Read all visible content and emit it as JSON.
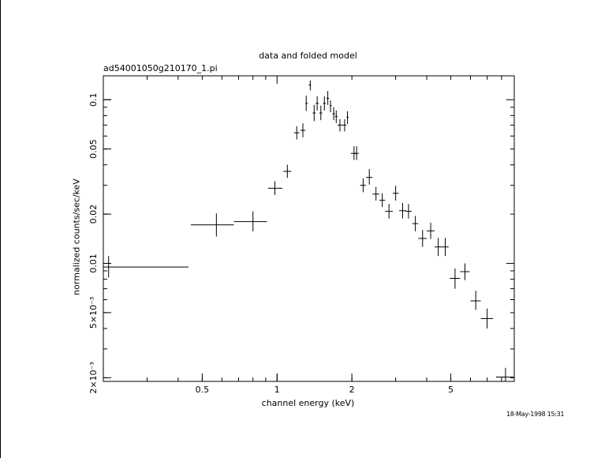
{
  "chart_data": {
    "type": "scatter",
    "title": "data and folded model",
    "subtitle": "ad54001050g210170_1.pi",
    "xlabel": "channel energy (keV)",
    "ylabel": "normalized counts/sec/keV",
    "timestamp": "18-May-1998 15:31",
    "x_scale": "log",
    "y_scale": "log",
    "xlim": [
      0.2,
      9.0
    ],
    "ylim": [
      0.0019,
      0.14
    ],
    "x_ticks": [
      {
        "value": 0.5,
        "label": "0.5"
      },
      {
        "value": 1,
        "label": "1"
      },
      {
        "value": 2,
        "label": "2"
      },
      {
        "value": 5,
        "label": "5"
      }
    ],
    "y_ticks": [
      {
        "value": 0.002,
        "label": "2×10⁻³"
      },
      {
        "value": 0.005,
        "label": "5×10⁻³"
      },
      {
        "value": 0.01,
        "label": "0.01"
      },
      {
        "value": 0.02,
        "label": "0.02"
      },
      {
        "value": 0.05,
        "label": "0.05"
      },
      {
        "value": 0.1,
        "label": "0.1"
      }
    ],
    "series": [
      {
        "points": [
          {
            "x": 0.21,
            "xlo": 0.2,
            "xhi": 0.44,
            "y": 0.0095,
            "ylo": 0.0082,
            "yhi": 0.0111
          },
          {
            "x": 0.57,
            "xlo": 0.45,
            "xhi": 0.67,
            "y": 0.0172,
            "ylo": 0.0146,
            "yhi": 0.0202
          },
          {
            "x": 0.8,
            "xlo": 0.67,
            "xhi": 0.91,
            "y": 0.018,
            "ylo": 0.0157,
            "yhi": 0.0208
          },
          {
            "x": 0.98,
            "xlo": 0.92,
            "xhi": 1.05,
            "y": 0.0288,
            "ylo": 0.0262,
            "yhi": 0.0318
          },
          {
            "x": 1.1,
            "xlo": 1.06,
            "xhi": 1.14,
            "y": 0.0365,
            "ylo": 0.0333,
            "yhi": 0.0401
          },
          {
            "x": 1.2,
            "xlo": 1.17,
            "xhi": 1.23,
            "y": 0.0628,
            "ylo": 0.0572,
            "yhi": 0.0689
          },
          {
            "x": 1.27,
            "xlo": 1.24,
            "xhi": 1.3,
            "y": 0.065,
            "ylo": 0.0589,
            "yhi": 0.0717
          },
          {
            "x": 1.31,
            "xlo": 1.3,
            "xhi": 1.33,
            "y": 0.095,
            "ylo": 0.0855,
            "yhi": 0.106
          },
          {
            "x": 1.36,
            "xlo": 1.34,
            "xhi": 1.37,
            "y": 0.123,
            "ylo": 0.114,
            "yhi": 0.131
          },
          {
            "x": 1.41,
            "xlo": 1.39,
            "xhi": 1.43,
            "y": 0.083,
            "ylo": 0.074,
            "yhi": 0.093
          },
          {
            "x": 1.45,
            "xlo": 1.43,
            "xhi": 1.47,
            "y": 0.095,
            "ylo": 0.086,
            "yhi": 0.105
          },
          {
            "x": 1.5,
            "xlo": 1.48,
            "xhi": 1.52,
            "y": 0.083,
            "ylo": 0.075,
            "yhi": 0.092
          },
          {
            "x": 1.55,
            "xlo": 1.53,
            "xhi": 1.57,
            "y": 0.095,
            "ylo": 0.086,
            "yhi": 0.105
          },
          {
            "x": 1.6,
            "xlo": 1.58,
            "xhi": 1.62,
            "y": 0.102,
            "ylo": 0.093,
            "yhi": 0.113
          },
          {
            "x": 1.64,
            "xlo": 1.63,
            "xhi": 1.66,
            "y": 0.092,
            "ylo": 0.084,
            "yhi": 0.099
          },
          {
            "x": 1.69,
            "xlo": 1.67,
            "xhi": 1.71,
            "y": 0.082,
            "ylo": 0.075,
            "yhi": 0.09
          },
          {
            "x": 1.73,
            "xlo": 1.71,
            "xhi": 1.75,
            "y": 0.079,
            "ylo": 0.072,
            "yhi": 0.086
          },
          {
            "x": 1.79,
            "xlo": 1.75,
            "xhi": 1.83,
            "y": 0.07,
            "ylo": 0.064,
            "yhi": 0.076
          },
          {
            "x": 1.87,
            "xlo": 1.83,
            "xhi": 1.9,
            "y": 0.07,
            "ylo": 0.064,
            "yhi": 0.076
          },
          {
            "x": 1.92,
            "xlo": 1.9,
            "xhi": 1.94,
            "y": 0.078,
            "ylo": 0.071,
            "yhi": 0.085
          },
          {
            "x": 2.04,
            "xlo": 1.98,
            "xhi": 2.1,
            "y": 0.047,
            "ylo": 0.0428,
            "yhi": 0.052
          },
          {
            "x": 2.09,
            "xlo": 2.05,
            "xhi": 2.13,
            "y": 0.047,
            "ylo": 0.0428,
            "yhi": 0.052
          },
          {
            "x": 2.22,
            "xlo": 2.16,
            "xhi": 2.28,
            "y": 0.03,
            "ylo": 0.0272,
            "yhi": 0.0331
          },
          {
            "x": 2.35,
            "xlo": 2.28,
            "xhi": 2.42,
            "y": 0.0335,
            "ylo": 0.0303,
            "yhi": 0.0377
          },
          {
            "x": 2.5,
            "xlo": 2.42,
            "xhi": 2.58,
            "y": 0.0265,
            "ylo": 0.0242,
            "yhi": 0.0293
          },
          {
            "x": 2.65,
            "xlo": 2.58,
            "xhi": 2.72,
            "y": 0.0243,
            "ylo": 0.0221,
            "yhi": 0.0268
          },
          {
            "x": 2.82,
            "xlo": 2.72,
            "xhi": 2.92,
            "y": 0.0208,
            "ylo": 0.0188,
            "yhi": 0.0231
          },
          {
            "x": 3.0,
            "xlo": 2.92,
            "xhi": 3.08,
            "y": 0.0268,
            "ylo": 0.0242,
            "yhi": 0.0298
          },
          {
            "x": 3.2,
            "xlo": 3.1,
            "xhi": 3.3,
            "y": 0.021,
            "ylo": 0.0188,
            "yhi": 0.0234
          },
          {
            "x": 3.38,
            "xlo": 3.28,
            "xhi": 3.48,
            "y": 0.0208,
            "ylo": 0.0188,
            "yhi": 0.0231
          },
          {
            "x": 3.6,
            "xlo": 3.5,
            "xhi": 3.7,
            "y": 0.0175,
            "ylo": 0.0157,
            "yhi": 0.0195
          },
          {
            "x": 3.85,
            "xlo": 3.7,
            "xhi": 4.0,
            "y": 0.0142,
            "ylo": 0.0126,
            "yhi": 0.016
          },
          {
            "x": 4.15,
            "xlo": 4.0,
            "xhi": 4.3,
            "y": 0.0158,
            "ylo": 0.0141,
            "yhi": 0.0177
          },
          {
            "x": 4.45,
            "xlo": 4.3,
            "xhi": 4.6,
            "y": 0.0126,
            "ylo": 0.0111,
            "yhi": 0.0143
          },
          {
            "x": 4.75,
            "xlo": 4.6,
            "xhi": 4.9,
            "y": 0.0126,
            "ylo": 0.0111,
            "yhi": 0.0143
          },
          {
            "x": 5.2,
            "xlo": 4.95,
            "xhi": 5.45,
            "y": 0.0081,
            "ylo": 0.007,
            "yhi": 0.0093
          },
          {
            "x": 5.7,
            "xlo": 5.45,
            "xhi": 5.95,
            "y": 0.0089,
            "ylo": 0.0079,
            "yhi": 0.01
          },
          {
            "x": 6.3,
            "xlo": 6.0,
            "xhi": 6.6,
            "y": 0.0059,
            "ylo": 0.0052,
            "yhi": 0.0068
          },
          {
            "x": 7.0,
            "xlo": 6.6,
            "xhi": 7.4,
            "y": 0.0046,
            "ylo": 0.004,
            "yhi": 0.0053
          },
          {
            "x": 8.3,
            "xlo": 7.6,
            "xhi": 9.0,
            "y": 0.00202,
            "ylo": 0.00189,
            "yhi": 0.0023
          }
        ]
      }
    ]
  }
}
